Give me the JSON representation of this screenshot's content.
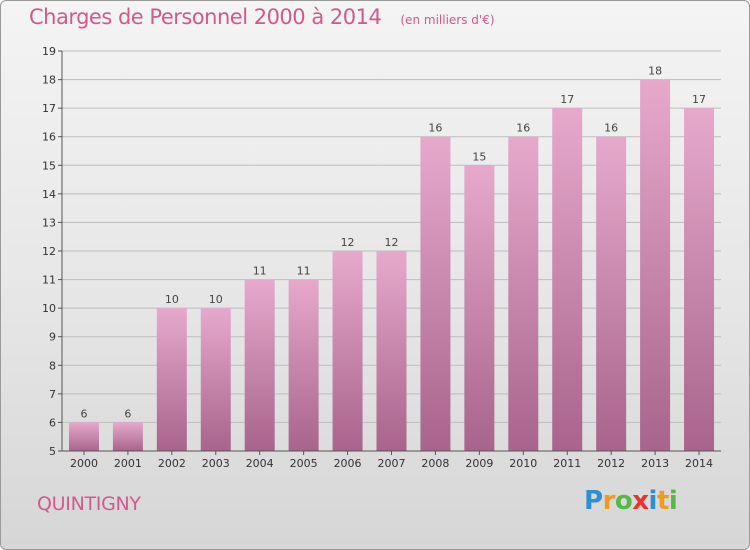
{
  "chart_data": {
    "type": "bar",
    "title": "Charges de Personnel 2000 à 2014",
    "subtitle": "(en milliers d'€)",
    "categories": [
      "2000",
      "2001",
      "2002",
      "2003",
      "2004",
      "2005",
      "2006",
      "2007",
      "2008",
      "2009",
      "2010",
      "2011",
      "2012",
      "2013",
      "2014"
    ],
    "values": [
      6,
      6,
      10,
      10,
      11,
      11,
      12,
      12,
      16,
      15,
      16,
      17,
      16,
      18,
      17
    ],
    "ylim": [
      5,
      19
    ],
    "yticks": [
      5,
      6,
      7,
      8,
      9,
      10,
      11,
      12,
      13,
      14,
      15,
      16,
      17,
      18,
      19
    ],
    "grid": true,
    "bar_color": "#dd98c0"
  },
  "commune": "QUINTIGNY",
  "logo": {
    "letters": [
      {
        "ch": "P",
        "color": "#2f8fd6"
      },
      {
        "ch": "r",
        "color": "#f29a1e"
      },
      {
        "ch": "o",
        "color": "#56b847"
      },
      {
        "ch": "x",
        "color": "#e8342c"
      },
      {
        "ch": "i",
        "color": "#2f8fd6"
      },
      {
        "ch": "t",
        "color": "#f29a1e"
      },
      {
        "ch": "i",
        "color": "#56b847"
      }
    ]
  }
}
